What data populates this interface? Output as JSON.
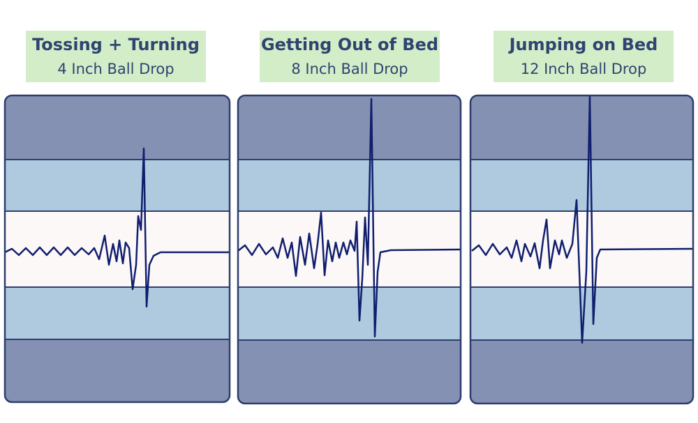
{
  "panels": [
    {
      "title": "Tossing + Turning",
      "subtitle": "4 Inch Ball Drop"
    },
    {
      "title": "Getting Out of Bed",
      "subtitle": "8 Inch Ball Drop"
    },
    {
      "title": "Jumping on Bed",
      "subtitle": "12 Inch Ball Drop"
    }
  ]
}
